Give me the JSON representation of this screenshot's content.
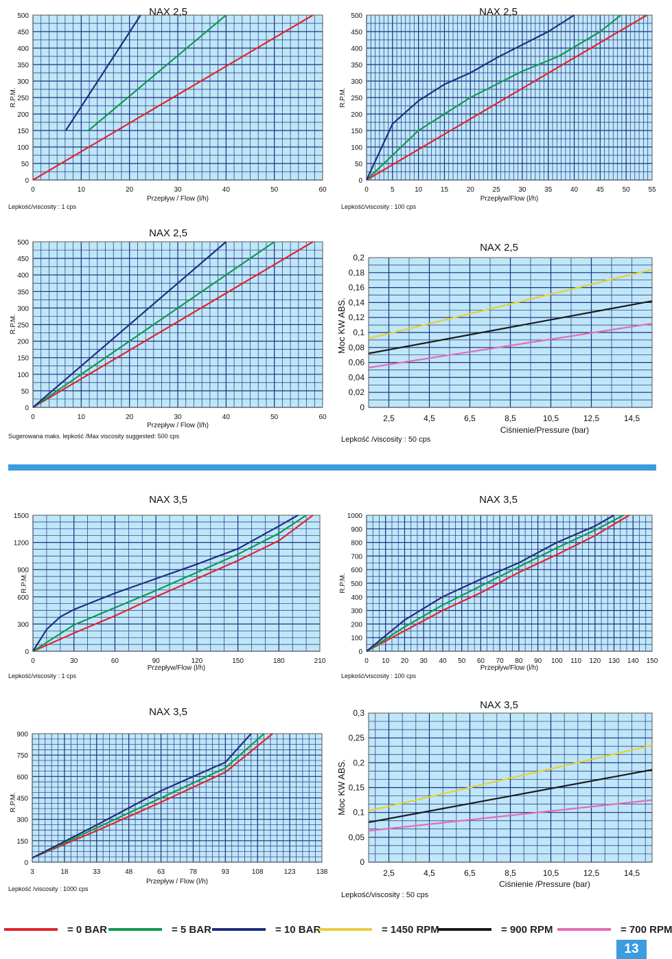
{
  "colors": {
    "bar_0": "#e0252b",
    "bar_5": "#0e9a4e",
    "bar_10": "#1f2d7f",
    "rpm_1450": "#e7cf3a",
    "rpm_900": "#1a1a1a",
    "rpm_700": "#e56ab5",
    "plot_bg": "#bfe7f8",
    "grid": "#1f2e80",
    "accent": "#3b9cde"
  },
  "legend": [
    {
      "label": "= 0 BAR",
      "color_key": "bar_0"
    },
    {
      "label": "= 5 BAR",
      "color_key": "bar_5"
    },
    {
      "label": "= 10 BAR",
      "color_key": "bar_10"
    },
    {
      "label": "= 1450 RPM",
      "color_key": "rpm_1450"
    },
    {
      "label": "= 900 RPM",
      "color_key": "rpm_900"
    },
    {
      "label": "= 700 RPM",
      "color_key": "rpm_700"
    }
  ],
  "page_number": "13",
  "chart_data": [
    {
      "id": "nax25-visc1",
      "type": "line",
      "title": "NAX 2,5",
      "xlabel": "Przepływ / Flow (l/h)",
      "ylabel": "R.P.M.",
      "note": "Lepkość/viscosity : 1 cps",
      "xlim": [
        0,
        60
      ],
      "ylim": [
        0,
        500
      ],
      "xticks": [
        "0",
        "10",
        "20",
        "30",
        "40",
        "50",
        "60"
      ],
      "xtick_values": [
        0,
        10,
        20,
        30,
        40,
        50,
        60
      ],
      "yticks": [
        "0",
        "50",
        "100",
        "150",
        "200",
        "250",
        "300",
        "350",
        "400",
        "450",
        "500"
      ],
      "ytick_values": [
        0,
        50,
        100,
        150,
        200,
        250,
        300,
        350,
        400,
        450,
        500
      ],
      "series": [
        {
          "name": "0 BAR",
          "color_key": "bar_0",
          "points": [
            [
              0,
              0
            ],
            [
              58,
              500
            ]
          ]
        },
        {
          "name": "5 BAR",
          "color_key": "bar_5",
          "points": [
            [
              11.5,
              150
            ],
            [
              40,
              500
            ]
          ]
        },
        {
          "name": "10 BAR",
          "color_key": "bar_10",
          "points": [
            [
              6.8,
              150
            ],
            [
              22.3,
              500
            ]
          ]
        }
      ]
    },
    {
      "id": "nax25-visc100",
      "type": "line",
      "title": "NAX 2,5",
      "xlabel": "Przepływ/Flow (l/h)",
      "ylabel": "R.P.M.",
      "note": "Lepkość/viscosity : 100 cps",
      "xlim": [
        0,
        55
      ],
      "ylim": [
        0,
        500
      ],
      "xticks": [
        "0",
        "5",
        "10",
        "15",
        "20",
        "25",
        "30",
        "35",
        "40",
        "45",
        "50",
        "55"
      ],
      "xtick_values": [
        0,
        5,
        10,
        15,
        20,
        25,
        30,
        35,
        40,
        45,
        50,
        55
      ],
      "yticks": [
        "0",
        "50",
        "100",
        "150",
        "200",
        "250",
        "300",
        "350",
        "400",
        "450",
        "500"
      ],
      "ytick_values": [
        0,
        50,
        100,
        150,
        200,
        250,
        300,
        350,
        400,
        450,
        500
      ],
      "series": [
        {
          "name": "0 BAR",
          "color_key": "bar_0",
          "points": [
            [
              0,
              0
            ],
            [
              54,
              500
            ]
          ]
        },
        {
          "name": "5 BAR",
          "color_key": "bar_5",
          "points": [
            [
              0,
              0
            ],
            [
              10,
              150
            ],
            [
              20,
              250
            ],
            [
              30,
              330
            ],
            [
              37,
              375
            ],
            [
              45,
              450
            ],
            [
              49,
              500
            ]
          ]
        },
        {
          "name": "10 BAR",
          "color_key": "bar_10",
          "points": [
            [
              0,
              0
            ],
            [
              5,
              170
            ],
            [
              10,
              240
            ],
            [
              15,
              290
            ],
            [
              20,
              325
            ],
            [
              25,
              370
            ],
            [
              30,
              410
            ],
            [
              35,
              450
            ],
            [
              40,
              500
            ]
          ]
        }
      ]
    },
    {
      "id": "nax25-visc500",
      "type": "line",
      "title": "NAX 2,5",
      "xlabel": "Przepływ / Flow (l/h)",
      "ylabel": "R.P.M.",
      "note": "Sugerowana maks. lepkość /Max viscosity suggested: 500 cps",
      "xlim": [
        0,
        60
      ],
      "ylim": [
        0,
        500
      ],
      "xticks": [
        "0",
        "10",
        "20",
        "30",
        "40",
        "50",
        "60"
      ],
      "xtick_values": [
        0,
        10,
        20,
        30,
        40,
        50,
        60
      ],
      "yticks": [
        "0",
        "50",
        "100",
        "150",
        "200",
        "250",
        "300",
        "350",
        "400",
        "450",
        "500"
      ],
      "ytick_values": [
        0,
        50,
        100,
        150,
        200,
        250,
        300,
        350,
        400,
        450,
        500
      ],
      "series": [
        {
          "name": "0 BAR",
          "color_key": "bar_0",
          "points": [
            [
              0,
              0
            ],
            [
              58,
              500
            ]
          ]
        },
        {
          "name": "5 BAR",
          "color_key": "bar_5",
          "points": [
            [
              0,
              0
            ],
            [
              50,
              500
            ]
          ]
        },
        {
          "name": "10 BAR",
          "color_key": "bar_10",
          "points": [
            [
              0,
              0
            ],
            [
              40,
              500
            ]
          ]
        }
      ]
    },
    {
      "id": "nax25-power",
      "type": "line",
      "title": "NAX 2,5",
      "xlabel": "Ciśnienie/Pressure (bar)",
      "ylabel": "Moc KW ABS.",
      "note": "Lepkość /viscosity : 50 cps",
      "xlim": [
        1.5,
        15.5
      ],
      "ylim": [
        0,
        0.2
      ],
      "xticks": [
        "2,5",
        "4,5",
        "6,5",
        "8,5",
        "10,5",
        "12,5",
        "14,5"
      ],
      "xtick_values": [
        2.5,
        4.5,
        6.5,
        8.5,
        10.5,
        12.5,
        14.5
      ],
      "yticks": [
        "0",
        "0,02",
        "0,04",
        "0,06",
        "0,08",
        "0,1",
        "0,12",
        "0,14",
        "0,16",
        "0,18",
        "0,2"
      ],
      "ytick_values": [
        0,
        0.02,
        0.04,
        0.06,
        0.08,
        0.1,
        0.12,
        0.14,
        0.16,
        0.18,
        0.2
      ],
      "series": [
        {
          "name": "1450 RPM",
          "color_key": "rpm_1450",
          "points": [
            [
              1.5,
              0.092
            ],
            [
              15.5,
              0.184
            ]
          ]
        },
        {
          "name": "900 RPM",
          "color_key": "rpm_900",
          "points": [
            [
              1.5,
              0.072
            ],
            [
              15.5,
              0.142
            ]
          ]
        },
        {
          "name": "700 RPM",
          "color_key": "rpm_700",
          "points": [
            [
              1.5,
              0.053
            ],
            [
              15.5,
              0.112
            ]
          ]
        }
      ]
    },
    {
      "id": "nax35-visc1",
      "type": "line",
      "title": "NAX 3,5",
      "xlabel": "Przepływ/Flow (l/h)",
      "ylabel": "R.P.M.",
      "note": "Lepkość/viscosity : 1 cps",
      "xlim": [
        0,
        210
      ],
      "ylim": [
        0,
        1500
      ],
      "xticks": [
        "0",
        "30",
        "60",
        "90",
        "120",
        "150",
        "180",
        "210"
      ],
      "xtick_values": [
        0,
        30,
        60,
        90,
        120,
        150,
        180,
        210
      ],
      "yticks": [
        "0",
        "300",
        "600",
        "900",
        "1200",
        "1500"
      ],
      "ytick_values": [
        0,
        300,
        600,
        900,
        1200,
        1500
      ],
      "series": [
        {
          "name": "0 BAR",
          "color_key": "bar_0",
          "points": [
            [
              0,
              0
            ],
            [
              30,
              200
            ],
            [
              60,
              390
            ],
            [
              90,
              600
            ],
            [
              120,
              800
            ],
            [
              150,
              1000
            ],
            [
              180,
              1220
            ],
            [
              205,
              1500
            ]
          ]
        },
        {
          "name": "5 BAR",
          "color_key": "bar_5",
          "points": [
            [
              0,
              0
            ],
            [
              30,
              290
            ],
            [
              60,
              480
            ],
            [
              90,
              670
            ],
            [
              120,
              870
            ],
            [
              150,
              1070
            ],
            [
              180,
              1300
            ],
            [
              200,
              1500
            ]
          ]
        },
        {
          "name": "10 BAR",
          "color_key": "bar_10",
          "points": [
            [
              0,
              0
            ],
            [
              10,
              240
            ],
            [
              20,
              380
            ],
            [
              30,
              460
            ],
            [
              60,
              640
            ],
            [
              90,
              800
            ],
            [
              120,
              960
            ],
            [
              150,
              1130
            ],
            [
              180,
              1380
            ],
            [
              194,
              1500
            ]
          ]
        }
      ]
    },
    {
      "id": "nax35-visc100",
      "type": "line",
      "title": "NAX 3,5",
      "xlabel": "Przepływ/Flow (l/h)",
      "ylabel": "R.P.M.",
      "note": "Lepkość/viscosity : 100 cps",
      "xlim": [
        0,
        150
      ],
      "ylim": [
        0,
        1000
      ],
      "xticks": [
        "0",
        "10",
        "20",
        "30",
        "40",
        "50",
        "60",
        "70",
        "80",
        "90",
        "100",
        "110",
        "120",
        "130",
        "140",
        "150"
      ],
      "xtick_values": [
        0,
        10,
        20,
        30,
        40,
        50,
        60,
        70,
        80,
        90,
        100,
        110,
        120,
        130,
        140,
        150
      ],
      "yticks": [
        "0",
        "100",
        "200",
        "300",
        "400",
        "500",
        "600",
        "700",
        "800",
        "900",
        "1000"
      ],
      "ytick_values": [
        0,
        100,
        200,
        300,
        400,
        500,
        600,
        700,
        800,
        900,
        1000
      ],
      "series": [
        {
          "name": "0 BAR",
          "color_key": "bar_0",
          "points": [
            [
              0,
              0
            ],
            [
              20,
              150
            ],
            [
              40,
              300
            ],
            [
              60,
              430
            ],
            [
              80,
              580
            ],
            [
              100,
              710
            ],
            [
              120,
              850
            ],
            [
              138,
              1000
            ]
          ]
        },
        {
          "name": "5 BAR",
          "color_key": "bar_5",
          "points": [
            [
              0,
              0
            ],
            [
              20,
              180
            ],
            [
              40,
              340
            ],
            [
              60,
              480
            ],
            [
              80,
              620
            ],
            [
              100,
              760
            ],
            [
              120,
              890
            ],
            [
              135,
              1000
            ]
          ]
        },
        {
          "name": "10 BAR",
          "color_key": "bar_10",
          "points": [
            [
              0,
              0
            ],
            [
              20,
              230
            ],
            [
              40,
              400
            ],
            [
              60,
              530
            ],
            [
              80,
              650
            ],
            [
              100,
              800
            ],
            [
              120,
              920
            ],
            [
              130,
              1000
            ]
          ]
        }
      ]
    },
    {
      "id": "nax35-visc1000",
      "type": "line",
      "title": "NAX 3,5",
      "xlabel": "Przepływ / Flow (l/h)",
      "ylabel": "R.P.M.",
      "note": "Lepkość /viscosity : 1000 cps",
      "xlim": [
        3,
        138
      ],
      "ylim": [
        0,
        900
      ],
      "xticks": [
        "3",
        "18",
        "33",
        "48",
        "63",
        "78",
        "93",
        "108",
        "123",
        "138"
      ],
      "xtick_values": [
        3,
        18,
        33,
        48,
        63,
        78,
        93,
        108,
        123,
        138
      ],
      "yticks": [
        "0",
        "150",
        "300",
        "450",
        "600",
        "750",
        "900"
      ],
      "ytick_values": [
        0,
        150,
        300,
        450,
        600,
        750,
        900
      ],
      "series": [
        {
          "name": "0 BAR",
          "color_key": "bar_0",
          "points": [
            [
              3,
              30
            ],
            [
              33,
              220
            ],
            [
              63,
              420
            ],
            [
              93,
              630
            ],
            [
              115,
              900
            ]
          ]
        },
        {
          "name": "5 BAR",
          "color_key": "bar_5",
          "points": [
            [
              3,
              30
            ],
            [
              33,
              240
            ],
            [
              63,
              450
            ],
            [
              93,
              660
            ],
            [
              111,
              900
            ]
          ]
        },
        {
          "name": "10 BAR",
          "color_key": "bar_10",
          "points": [
            [
              3,
              30
            ],
            [
              33,
              260
            ],
            [
              63,
              500
            ],
            [
              93,
              700
            ],
            [
              105,
              900
            ]
          ]
        }
      ]
    },
    {
      "id": "nax35-power",
      "type": "line",
      "title": "NAX 3,5",
      "xlabel": "Ciśnienie /Pressure (bar)",
      "ylabel": "Moc KW ABS.",
      "note": "Lepkość/viscosity : 50 cps",
      "xlim": [
        1.5,
        15.5
      ],
      "ylim": [
        0,
        0.3
      ],
      "xticks": [
        "2,5",
        "4,5",
        "6,5",
        "8,5",
        "10,5",
        "12,5",
        "14,5"
      ],
      "xtick_values": [
        2.5,
        4.5,
        6.5,
        8.5,
        10.5,
        12.5,
        14.5
      ],
      "yticks": [
        "0",
        "0,05",
        "0,1",
        "0,15",
        "0,2",
        "0,25",
        "0,3"
      ],
      "ytick_values": [
        0,
        0.05,
        0.1,
        0.15,
        0.2,
        0.25,
        0.3
      ],
      "series": [
        {
          "name": "1450 RPM",
          "color_key": "rpm_1450",
          "points": [
            [
              1.5,
              0.103
            ],
            [
              15.5,
              0.235
            ]
          ]
        },
        {
          "name": "900 RPM",
          "color_key": "rpm_900",
          "points": [
            [
              1.5,
              0.08
            ],
            [
              15.5,
              0.186
            ]
          ]
        },
        {
          "name": "700 RPM",
          "color_key": "rpm_700",
          "points": [
            [
              1.5,
              0.063
            ],
            [
              15.5,
              0.125
            ]
          ]
        }
      ]
    }
  ]
}
